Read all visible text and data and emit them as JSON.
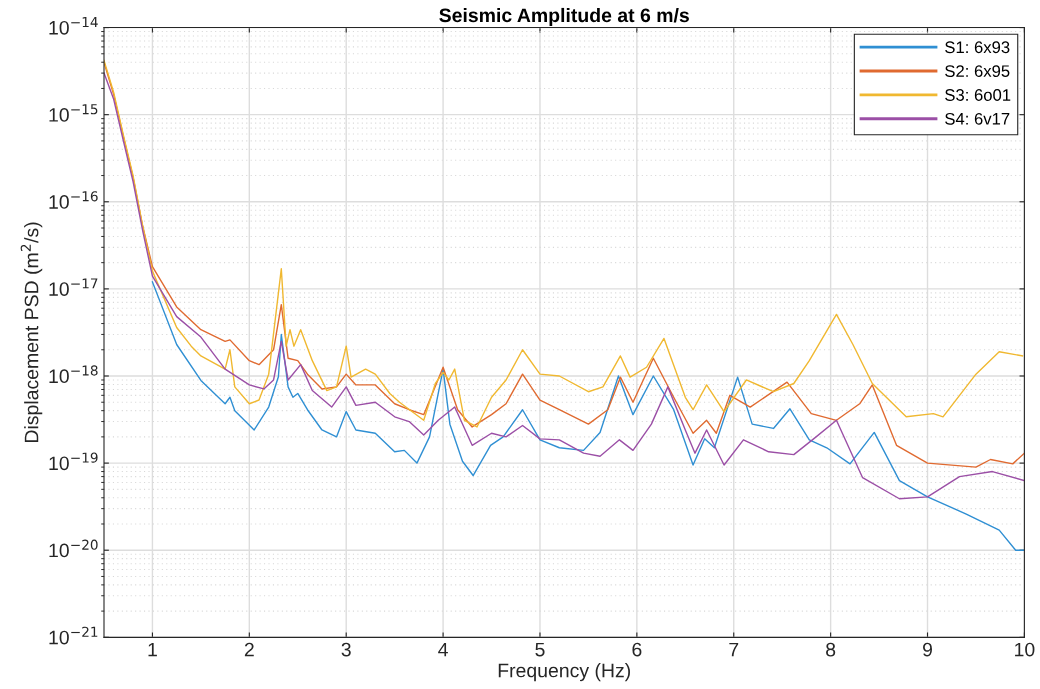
{
  "chart_data": {
    "type": "line",
    "title": "Seismic Amplitude at 6 m/s",
    "xlabel": "Frequency (Hz)",
    "ylabel": "Displacement PSD (m$^{2}$/s)",
    "log": "y",
    "grid": true,
    "legend": "top right",
    "line_style": "solid",
    "marker": "none",
    "xlim": [
      0.5,
      10
    ],
    "xticks": [
      1,
      2,
      3,
      4,
      5,
      6,
      7,
      8,
      9,
      10
    ],
    "ylim": [
      1e-21,
      1e-14
    ],
    "yticks": [
      {
        "value": 1e-21,
        "label": "10$^{−21}$"
      },
      {
        "value": 1e-20,
        "label": "10$^{−20}$"
      },
      {
        "value": 1e-19,
        "label": "10$^{−19}$"
      },
      {
        "value": 1e-18,
        "label": "10$^{−18}$"
      },
      {
        "value": 1e-17,
        "label": "10$^{−17}$"
      },
      {
        "value": 1e-16,
        "label": "10$^{−16}$"
      },
      {
        "value": 1e-15,
        "label": "10$^{−15}$"
      },
      {
        "value": 1e-14,
        "label": "10$^{−14}$"
      }
    ],
    "series": [
      {
        "name": "S1: 6x93",
        "color": "#2f8fd3",
        "x": [
          1.0,
          1.25,
          1.5,
          1.75,
          1.8,
          1.85,
          2.05,
          2.2,
          2.3,
          2.33,
          2.4,
          2.45,
          2.5,
          2.6,
          2.75,
          2.9,
          3.0,
          3.1,
          3.3,
          3.5,
          3.6,
          3.73,
          3.86,
          4.0,
          4.07,
          4.2,
          4.31,
          4.49,
          4.62,
          4.82,
          5.0,
          5.2,
          5.45,
          5.62,
          5.81,
          5.96,
          6.17,
          6.38,
          6.58,
          6.7,
          6.8,
          7.04,
          7.19,
          7.41,
          7.58,
          7.78,
          7.96,
          8.2,
          8.45,
          8.71,
          9.0,
          9.4,
          9.74,
          9.91,
          10.0
        ],
        "values": [
          1.2e-17,
          2.3e-18,
          8.9e-19,
          4.8e-19,
          5.7e-19,
          4e-19,
          2.4e-19,
          4.4e-19,
          9.8e-19,
          3e-18,
          7.5e-19,
          5.7e-19,
          6.3e-19,
          4.1e-19,
          2.4e-19,
          2e-19,
          3.9e-19,
          2.4e-19,
          2.2e-19,
          1.35e-19,
          1.4e-19,
          1e-19,
          2e-19,
          1.2e-18,
          2.8e-19,
          1.05e-19,
          7.2e-20,
          1.6e-19,
          2e-19,
          4.1e-19,
          1.85e-19,
          1.5e-19,
          1.4e-19,
          2.25e-19,
          1e-18,
          3.6e-19,
          1e-18,
          4.1e-19,
          9.5e-20,
          1.9e-19,
          1.5e-19,
          9.7e-19,
          2.8e-19,
          2.5e-19,
          4.2e-19,
          1.85e-19,
          1.5e-19,
          9.8e-20,
          2.25e-19,
          6.3e-20,
          4.1e-20,
          2.6e-20,
          1.7e-20,
          1e-20,
          1e-20
        ]
      },
      {
        "name": "S2: 6x95",
        "color": "#e06a30",
        "x": [
          0.5,
          0.6,
          0.7,
          0.8,
          0.9,
          1.0,
          1.25,
          1.5,
          1.75,
          1.8,
          2.0,
          2.1,
          2.25,
          2.33,
          2.4,
          2.5,
          2.6,
          2.75,
          2.9,
          3.0,
          3.1,
          3.3,
          3.5,
          3.65,
          3.8,
          4.0,
          4.15,
          4.3,
          4.5,
          4.65,
          4.82,
          5.0,
          5.2,
          5.5,
          5.7,
          5.83,
          5.96,
          6.17,
          6.38,
          6.58,
          6.72,
          6.82,
          6.96,
          7.17,
          7.55,
          7.8,
          8.06,
          8.3,
          8.43,
          8.68,
          9.0,
          9.5,
          9.65,
          9.88,
          10.0
        ],
        "values": [
          4e-15,
          1.7e-15,
          5.6e-16,
          1.9e-16,
          5.2e-17,
          1.8e-17,
          6.2e-18,
          3.4e-18,
          2.5e-18,
          2.6e-18,
          1.5e-18,
          1.35e-18,
          2e-18,
          6.6e-18,
          1.6e-18,
          1.5e-18,
          1.05e-18,
          7.1e-19,
          7.5e-19,
          1.05e-18,
          7.9e-19,
          7.9e-19,
          4.8e-19,
          4.1e-19,
          3.6e-19,
          1.26e-18,
          4.1e-19,
          2.6e-19,
          3.6e-19,
          4.8e-19,
          1.05e-18,
          5.3e-19,
          4.1e-19,
          2.8e-19,
          4.1e-19,
          9.7e-19,
          5e-19,
          1.6e-18,
          5.7e-19,
          2.2e-19,
          3.1e-19,
          2.2e-19,
          6e-19,
          4.4e-19,
          8.5e-19,
          3.7e-19,
          3.1e-19,
          4.8e-19,
          7.9e-19,
          1.6e-19,
          1e-19,
          9e-20,
          1.1e-19,
          9.8e-20,
          1.3e-19
        ]
      },
      {
        "name": "S3: 6o01",
        "color": "#f0b830",
        "x": [
          0.5,
          0.6,
          0.7,
          0.8,
          0.9,
          1.0,
          1.25,
          1.4,
          1.5,
          1.75,
          1.8,
          1.85,
          2.0,
          2.1,
          2.2,
          2.33,
          2.38,
          2.42,
          2.46,
          2.53,
          2.65,
          2.8,
          2.9,
          3.0,
          3.05,
          3.2,
          3.3,
          3.45,
          3.55,
          3.8,
          3.92,
          4.0,
          4.06,
          4.12,
          4.22,
          4.35,
          4.5,
          4.65,
          4.82,
          5.0,
          5.2,
          5.5,
          5.65,
          5.83,
          5.93,
          6.1,
          6.28,
          6.5,
          6.58,
          6.72,
          6.9,
          7.13,
          7.41,
          7.62,
          7.78,
          8.06,
          8.23,
          8.43,
          8.78,
          9.06,
          9.16,
          9.5,
          9.74,
          9.98
        ],
        "values": [
          4.2e-15,
          1.8e-15,
          5.8e-16,
          2e-16,
          5.2e-17,
          1.6e-17,
          3.6e-18,
          2.2e-18,
          1.7e-18,
          1.2e-18,
          2e-18,
          7.5e-19,
          4.8e-19,
          5.3e-19,
          1.05e-18,
          1.7e-17,
          2.2e-18,
          3.4e-18,
          2.2e-18,
          3.4e-18,
          1.5e-18,
          6.8e-19,
          7.5e-19,
          2.2e-18,
          9.7e-19,
          1.2e-18,
          1.05e-18,
          6.3e-19,
          5e-19,
          3.1e-19,
          8.2e-19,
          1.1e-18,
          9e-19,
          1.2e-18,
          3.1e-19,
          2.6e-19,
          5.7e-19,
          9e-19,
          2e-18,
          1.05e-18,
          1e-18,
          6.6e-19,
          7.5e-19,
          1.7e-18,
          9.7e-19,
          1.26e-18,
          2.7e-18,
          5.7e-19,
          4.1e-19,
          7.9e-19,
          3.9e-19,
          9e-19,
          6.6e-19,
          8.2e-19,
          1.5e-18,
          5.1e-18,
          2.3e-18,
          8.2e-19,
          3.4e-19,
          3.7e-19,
          3.4e-19,
          1.05e-18,
          1.9e-18,
          1.7e-18
        ]
      },
      {
        "name": "S4: 6v17",
        "color": "#9b4fa6",
        "x": [
          0.5,
          0.6,
          0.7,
          0.8,
          0.9,
          1.0,
          1.25,
          1.5,
          1.75,
          2.0,
          2.15,
          2.25,
          2.33,
          2.4,
          2.53,
          2.65,
          2.85,
          3.0,
          3.1,
          3.3,
          3.5,
          3.65,
          3.8,
          3.95,
          4.12,
          4.3,
          4.5,
          4.65,
          4.82,
          5.0,
          5.2,
          5.45,
          5.62,
          5.82,
          5.96,
          6.15,
          6.32,
          6.5,
          6.6,
          6.72,
          6.9,
          7.1,
          7.36,
          7.62,
          7.85,
          8.06,
          8.33,
          8.71,
          9.0,
          9.33,
          9.67,
          10.0
        ],
        "values": [
          3e-15,
          1.5e-15,
          5e-16,
          1.7e-16,
          4.6e-17,
          1.4e-17,
          4.8e-18,
          2.8e-18,
          1.2e-18,
          7.9e-19,
          7.1e-19,
          9e-19,
          2.5e-18,
          9e-19,
          1.35e-18,
          6.8e-19,
          4.4e-19,
          7.5e-19,
          4.6e-19,
          5e-19,
          3.4e-19,
          3e-19,
          2.1e-19,
          3.1e-19,
          4.4e-19,
          1.6e-19,
          2.2e-19,
          2e-19,
          2.7e-19,
          1.9e-19,
          1.85e-19,
          1.3e-19,
          1.2e-19,
          1.85e-19,
          1.4e-19,
          2.8e-19,
          7.5e-19,
          2.4e-19,
          1.3e-19,
          2.4e-19,
          9.5e-20,
          1.85e-19,
          1.35e-19,
          1.25e-19,
          2e-19,
          3.1e-19,
          6.8e-20,
          3.9e-20,
          4.1e-20,
          7e-20,
          8e-20,
          6.3e-20
        ]
      }
    ]
  }
}
